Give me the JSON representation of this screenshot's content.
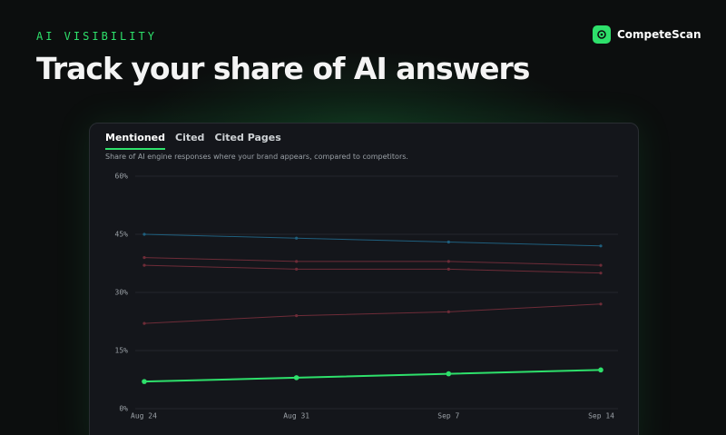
{
  "header": {
    "eyebrow": "AI VISIBILITY",
    "title": "Track your share of AI answers",
    "brand": "CompeteScan"
  },
  "tabs": [
    "Mentioned",
    "Cited",
    "Cited Pages"
  ],
  "chart_data": {
    "type": "line",
    "subtitle": "Share of AI engine responses where your brand appears, compared to competitors.",
    "categories": [
      "Aug 24",
      "Aug 31",
      "Sep 7",
      "Sep 14"
    ],
    "series": [
      {
        "color": "#1f5f7e",
        "values": [
          45,
          44,
          43,
          42
        ]
      },
      {
        "color": "#6e2c38",
        "values": [
          39,
          38,
          38,
          37
        ]
      },
      {
        "color": "#6e2c38",
        "values": [
          37,
          36,
          36,
          35
        ]
      },
      {
        "color": "#6e2c38",
        "values": [
          22,
          24,
          25,
          27
        ]
      },
      {
        "color": "#2ee06b",
        "values": [
          7,
          8,
          9,
          10
        ],
        "highlight": true
      }
    ],
    "ylim": [
      0,
      60
    ],
    "yticks": [
      {
        "value": 0,
        "label": "0%"
      },
      {
        "value": 15,
        "label": "15%"
      },
      {
        "value": 30,
        "label": "30%"
      },
      {
        "value": 45,
        "label": "45%"
      },
      {
        "value": 60,
        "label": "60%"
      }
    ],
    "grid": true
  }
}
